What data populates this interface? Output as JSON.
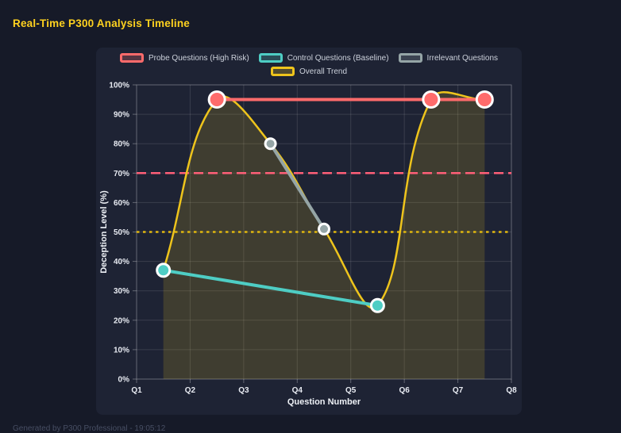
{
  "page": {
    "title": "Real-Time P300 Analysis Timeline",
    "footer": "Generated by P300 Professional - 19:05:12",
    "colors": {
      "page_bg": "#161a28",
      "card_bg": "#1e2334",
      "title": "#ffd21f",
      "footer": "#474e63",
      "grid": "rgba(255,255,255,0.12)",
      "plot_border": "rgba(255,255,255,0.22)",
      "tick": "rgba(255,255,255,0.30)",
      "tick_label": "#e8ebf2",
      "axis_title": "#eef1f6"
    }
  },
  "chart_data": {
    "type": "line",
    "title": "Real-Time P300 Analysis Timeline",
    "xlabel": "Question Number",
    "ylabel": "Deception Level (%)",
    "x_categories": [
      "Q1",
      "Q2",
      "Q3",
      "Q4",
      "Q5",
      "Q6",
      "Q7",
      "Q8"
    ],
    "x_range": [
      1,
      8
    ],
    "ylim": [
      0,
      100
    ],
    "y_tick_step": 10,
    "y_tick_suffix": "%",
    "grid": true,
    "legend_position": "top",
    "legend_rows": [
      [
        0,
        1,
        2
      ],
      [
        3
      ]
    ],
    "series": [
      {
        "name": "Probe Questions (High Risk)",
        "color": "#ff6b6b",
        "line_width": 4,
        "point_radius": 10,
        "smooth": false,
        "points": [
          {
            "x": 2.5,
            "y": 95
          },
          {
            "x": 6.5,
            "y": 95
          },
          {
            "x": 7.5,
            "y": 95
          }
        ]
      },
      {
        "name": "Control Questions (Baseline)",
        "color": "#4ecdc4",
        "line_width": 4,
        "point_radius": 8,
        "smooth": false,
        "points": [
          {
            "x": 1.5,
            "y": 37
          },
          {
            "x": 5.5,
            "y": 25
          }
        ]
      },
      {
        "name": "Irrelevant Questions",
        "color": "#95a5a6",
        "line_width": 4,
        "point_radius": 6.5,
        "smooth": false,
        "points": [
          {
            "x": 3.5,
            "y": 80
          },
          {
            "x": 4.5,
            "y": 51
          }
        ]
      },
      {
        "name": "Overall Trend",
        "color": "#eec41c",
        "line_width": 2.5,
        "point_radius": 0,
        "smooth": true,
        "fill": "rgba(238,196,28,0.16)",
        "points": [
          {
            "x": 1.5,
            "y": 37
          },
          {
            "x": 2.5,
            "y": 95
          },
          {
            "x": 3.5,
            "y": 80
          },
          {
            "x": 4.5,
            "y": 51
          },
          {
            "x": 5.5,
            "y": 25
          },
          {
            "x": 6.5,
            "y": 95
          },
          {
            "x": 7.5,
            "y": 95
          }
        ]
      }
    ],
    "thresholds": [
      {
        "y": 70,
        "color": "#ff5f78",
        "style": "dashed"
      },
      {
        "y": 50,
        "color": "#e0b70e",
        "style": "dotted"
      }
    ]
  }
}
